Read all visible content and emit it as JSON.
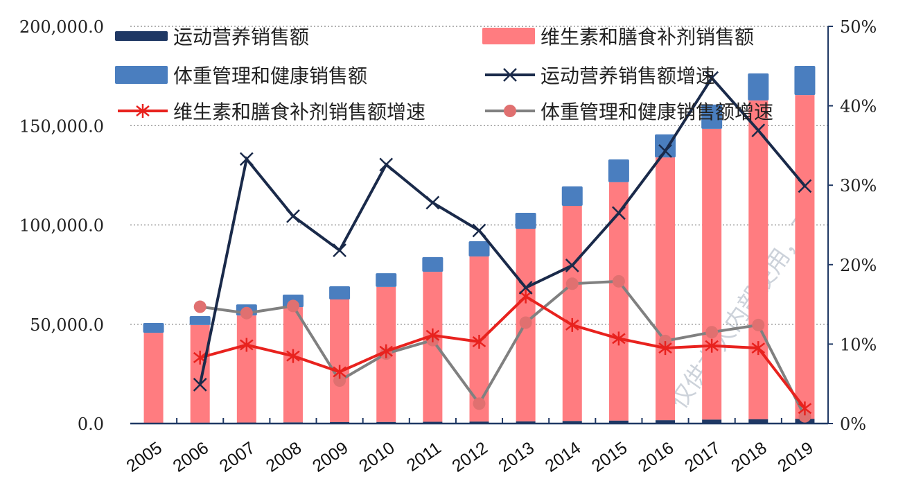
{
  "chart_data": {
    "type": "bar+line",
    "categories": [
      "2005",
      "2006",
      "2007",
      "2008",
      "2009",
      "2010",
      "2011",
      "2012",
      "2013",
      "2014",
      "2015",
      "2016",
      "2017",
      "2018",
      "2019"
    ],
    "stacked_bars": [
      {
        "name": "运动营养销售额",
        "color": "#1f3864",
        "values": [
          300,
          400,
          500,
          600,
          700,
          800,
          900,
          1000,
          1100,
          1300,
          1500,
          1700,
          2000,
          2200,
          2400
        ]
      },
      {
        "name": "维生素和膳食补剂销售额",
        "color": "#ff7c80",
        "values": [
          45400,
          49200,
          53900,
          58000,
          61800,
          68000,
          75500,
          83100,
          97000,
          108300,
          120000,
          132300,
          146400,
          160500,
          163000
        ]
      },
      {
        "name": "体重管理和健康销售额",
        "color": "#4a7ebf",
        "values": [
          4900,
          4500,
          5600,
          6300,
          6600,
          6900,
          7400,
          7700,
          8000,
          9800,
          11500,
          11600,
          12200,
          13600,
          14700
        ]
      }
    ],
    "lines": [
      {
        "name": "运动营养销售额增速",
        "color": "#1a2a4a",
        "marker": "x",
        "values": [
          null,
          4.9,
          33.3,
          26.1,
          21.8,
          32.6,
          27.8,
          24.3,
          17.1,
          19.9,
          26.5,
          34.3,
          43.5,
          36.9,
          29.9
        ]
      },
      {
        "name": "维生素和膳食补剂销售额增速",
        "color": "#e8221e",
        "marker": "asterisk",
        "values": [
          null,
          8.3,
          9.9,
          8.5,
          6.5,
          9.1,
          11.1,
          10.3,
          16.0,
          12.4,
          10.7,
          9.5,
          9.8,
          9.5,
          1.9
        ]
      },
      {
        "name": "体重管理和健康销售额增速",
        "color": "#808080",
        "marker": "circle",
        "marker_color": "#e07070",
        "values": [
          null,
          14.7,
          13.9,
          14.8,
          5.4,
          8.8,
          10.5,
          2.5,
          12.7,
          17.6,
          17.9,
          10.4,
          11.5,
          12.4,
          0.9
        ]
      }
    ],
    "y_left": {
      "ylim": [
        0,
        200000
      ],
      "ticks": [
        "0.0",
        "50,000.0",
        "100,000.0",
        "150,000.0",
        "200,000.0"
      ]
    },
    "y_right": {
      "ylim": [
        0,
        50
      ],
      "ticks": [
        "0%",
        "10%",
        "20%",
        "30%",
        "40%",
        "50%"
      ]
    },
    "grid": "horizontal dotted",
    "legend": "top, two columns"
  },
  "watermark": "仅供本人内部使用，不"
}
